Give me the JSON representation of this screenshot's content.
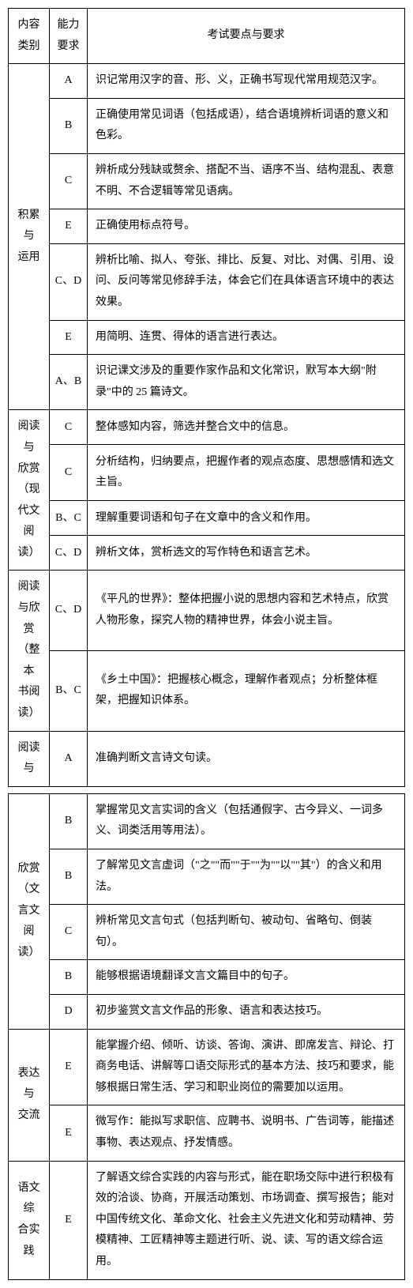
{
  "headers": {
    "category": "内容\n类别",
    "ability": "能力\n要求",
    "requirements": "考试要点与要求"
  },
  "table1": {
    "sections": [
      {
        "category": "积累与\n运用",
        "rows": [
          {
            "ability": "A",
            "content": "识记常用汉字的音、形、义，正确书写现代常用规范汉字。"
          },
          {
            "ability": "B",
            "content": "正确使用常见词语（包括成语），结合语境辨析词语的意义和色彩。"
          },
          {
            "ability": "C",
            "content": "辨析成分残缺或赘余、搭配不当、语序不当、结构混乱、表意不明、不合逻辑等常见语病。"
          },
          {
            "ability": "E",
            "content": "正确使用标点符号。"
          },
          {
            "ability": "C、D",
            "content": "辨析比喻、拟人、夸张、排比、反复、对比、对偶、引用、设问、反问等常见修辞手法，体会它们在具体语言环境中的表达效果。"
          },
          {
            "ability": "E",
            "content": "用简明、连贯、得体的语言进行表达。"
          },
          {
            "ability": "A、B",
            "content": "识记课文涉及的重要作家作品和文化常识，默写本大纲\"附录\"中的 25 篇诗文。"
          }
        ]
      },
      {
        "category": "阅读与\n欣赏（现\n代文阅\n读）",
        "rows": [
          {
            "ability": "C",
            "content": "整体感知内容，筛选并整合文中的信息。"
          },
          {
            "ability": "C",
            "content": "分析结构，归纳要点，把握作者的观点态度、思想感情和选文主旨。"
          },
          {
            "ability": "B、C",
            "content": "理解重要词语和句子在文章中的含义和作用。"
          },
          {
            "ability": "C、D",
            "content": "辨析文体，赏析选文的写作特色和语言艺术。"
          }
        ]
      },
      {
        "category": "阅读与欣\n赏（整本\n书阅读）",
        "rows": [
          {
            "ability": "C、D",
            "content": "《平凡的世界》：整体把握小说的思想内容和艺术特点，欣赏人物形象，探究人物的精神世界，体会小说主旨。"
          },
          {
            "ability": "B、C",
            "content": "《乡土中国》：把握核心概念，理解作者观点；分析整体框架，把握知识体系。"
          }
        ]
      },
      {
        "category": "阅读与",
        "rows": [
          {
            "ability": "A",
            "content": "准确判断文言诗文句读。"
          }
        ]
      }
    ]
  },
  "table2": {
    "sections": [
      {
        "category": "欣赏（文\n言文阅\n读）",
        "rows": [
          {
            "ability": "B",
            "content": "掌握常见文言实词的含义（包括通假字、古今异义、一词多义、词类活用等用法）。"
          },
          {
            "ability": "B",
            "content": "了解常见文言虚词（\"之\"\"而\"\"于\"\"为\"\"以\"\"其\"）的含义和用法。"
          },
          {
            "ability": "C",
            "content": "辨析常见文言句式（包括判断句、被动句、省略句、倒装句）。"
          },
          {
            "ability": "B",
            "content": "能够根据语境翻译文言文篇目中的句子。"
          },
          {
            "ability": "D",
            "content": "初步鉴赏文言文作品的形象、语言和表达技巧。"
          }
        ]
      },
      {
        "category": "表达与\n交流",
        "rows": [
          {
            "ability": "E",
            "content": "能掌握介绍、倾听、访谈、答询、演讲、即席发言、辩论、打商务电话、讲解等口语交际形式的基本方法、技巧和要求，能够根据日常生活、学习和职业岗位的需要加以运用。"
          },
          {
            "ability": "E",
            "content": "微写作：能拟写求职信、应聘书、说明书、广告词等，能描述事物、表达观点、抒发情感。"
          }
        ]
      },
      {
        "category": "语文综\n合实践",
        "rows": [
          {
            "ability": "E",
            "content": "了解语文综合实践的内容与形式，能在职场交际中进行积极有效的洽谈、协商，开展活动策划、市场调查、撰写报告；能对中国传统文化、革命文化、社会主义先进文化和劳动精神、劳模精神、工匠精神等主题进行听、说、读、写的语文综合运用。"
          }
        ]
      }
    ]
  }
}
